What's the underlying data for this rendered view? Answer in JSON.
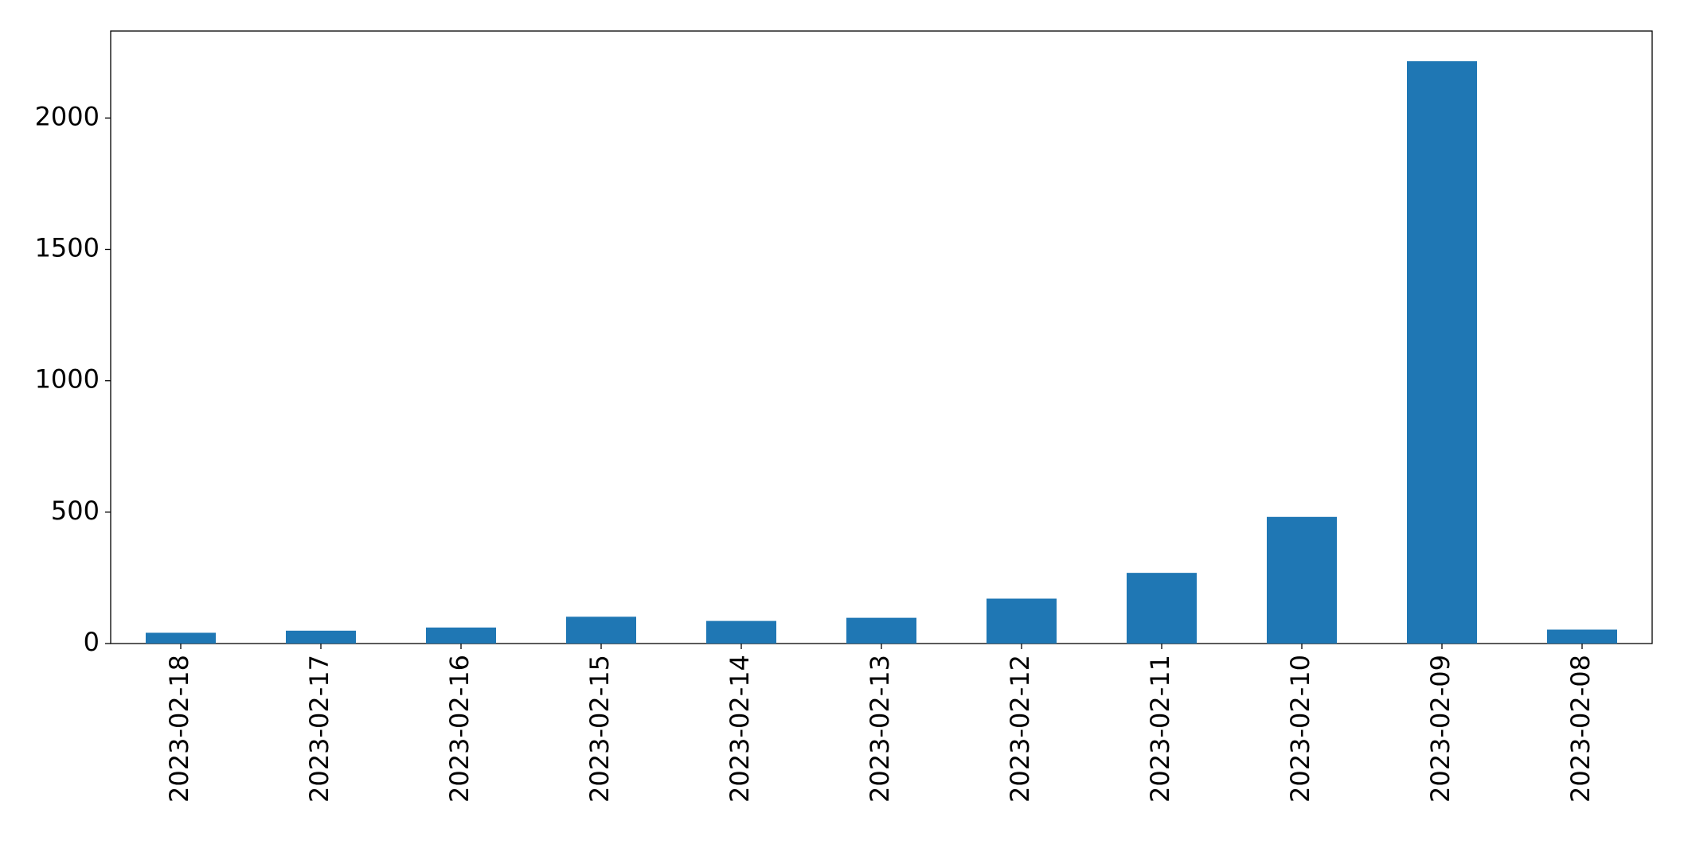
{
  "chart_data": {
    "type": "bar",
    "categories": [
      "2023-02-18",
      "2023-02-17",
      "2023-02-16",
      "2023-02-15",
      "2023-02-14",
      "2023-02-13",
      "2023-02-12",
      "2023-02-11",
      "2023-02-10",
      "2023-02-09",
      "2023-02-08"
    ],
    "values": [
      41,
      49,
      61,
      102,
      86,
      98,
      171,
      269,
      482,
      2216,
      53
    ],
    "color": "#1f77b4",
    "ylim": [
      0,
      2331
    ],
    "yticks": [
      0,
      500,
      1000,
      1500,
      2000
    ],
    "grid": false
  }
}
